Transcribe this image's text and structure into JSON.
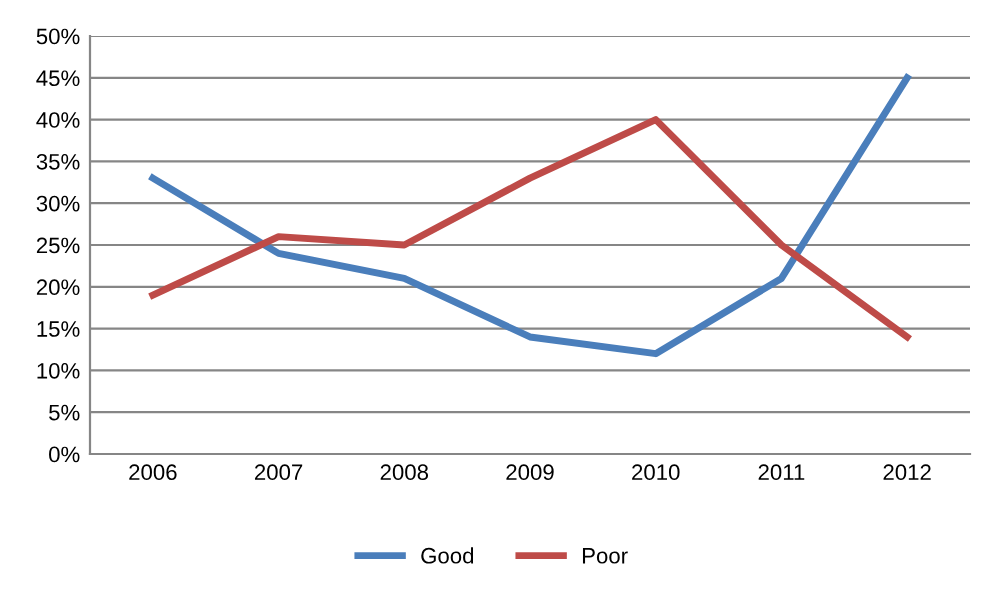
{
  "chart_data": {
    "type": "line",
    "categories": [
      "2006",
      "2007",
      "2008",
      "2009",
      "2010",
      "2011",
      "2012"
    ],
    "series": [
      {
        "name": "Good",
        "color": "#4a7ebb",
        "values": [
          33,
          24,
          21,
          14,
          12,
          21,
          45
        ]
      },
      {
        "name": "Poor",
        "color": "#be4b48",
        "values": [
          19,
          26,
          25,
          33,
          40,
          25,
          14
        ]
      }
    ],
    "ylim": [
      0,
      50
    ],
    "yticks": [
      {
        "value": 0,
        "label": "0%"
      },
      {
        "value": 5,
        "label": "5%"
      },
      {
        "value": 10,
        "label": "10%"
      },
      {
        "value": 15,
        "label": "15%"
      },
      {
        "value": 20,
        "label": "20%"
      },
      {
        "value": 25,
        "label": "25%"
      },
      {
        "value": 30,
        "label": "30%"
      },
      {
        "value": 35,
        "label": "35%"
      },
      {
        "value": 40,
        "label": "40%"
      },
      {
        "value": 45,
        "label": "45%"
      },
      {
        "value": 50,
        "label": "50%"
      }
    ],
    "grid": "y",
    "legend": "bottom",
    "marker": "none",
    "line_style": "solid"
  }
}
